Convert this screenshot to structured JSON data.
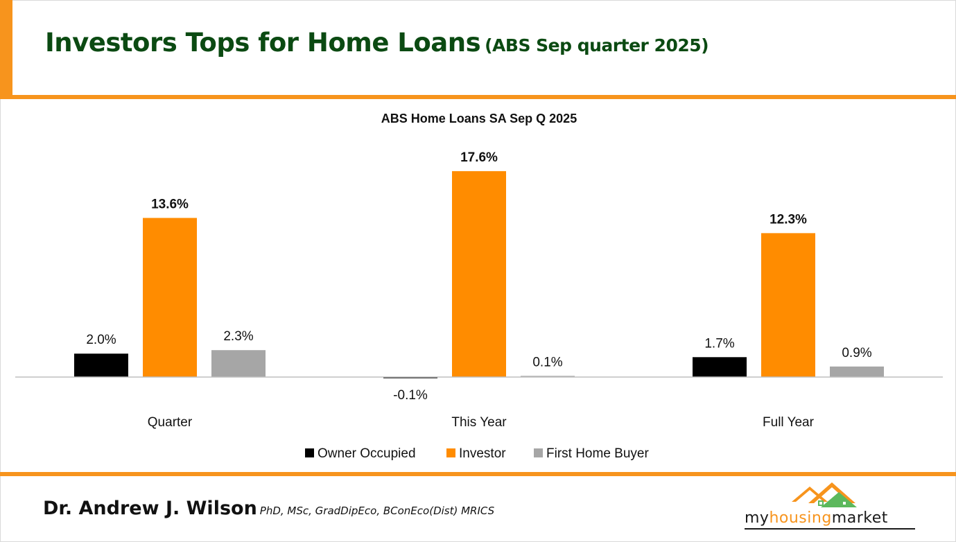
{
  "slide": {
    "headline": "Investors Tops for Home Loans",
    "headline_sub": "(ABS Sep quarter  2025)",
    "author_name": "Dr. Andrew J. Wilson",
    "author_credentials": "PhD, MSc, GradDipEco, BConEco(Dist) MRICS",
    "logo_text_pre": "my",
    "logo_text_accent": "housing",
    "logo_text_post": "market",
    "accent_color": "#f7941d",
    "headline_color": "#0b4a12"
  },
  "chart_data": {
    "type": "bar",
    "title": "ABS Home Loans SA Sep Q 2025",
    "categories": [
      "Quarter",
      "This Year",
      "Full Year"
    ],
    "series": [
      {
        "name": "Owner Occupied",
        "color": "#000000",
        "values": [
          2.0,
          -0.1,
          1.7
        ],
        "labels": [
          "2.0%",
          "-0.1%",
          "1.7%"
        ]
      },
      {
        "name": "Investor",
        "color": "#ff8c00",
        "values": [
          13.6,
          17.6,
          12.3
        ],
        "labels": [
          "13.6%",
          "17.6%",
          "12.3%"
        ]
      },
      {
        "name": "First Home Buyer",
        "color": "#a6a6a6",
        "values": [
          2.3,
          0.1,
          0.9
        ],
        "labels": [
          "2.3%",
          "0.1%",
          "0.9%"
        ]
      }
    ],
    "ylim": [
      -0.1,
      17.6
    ],
    "legend_position": "bottom",
    "grid": false
  }
}
